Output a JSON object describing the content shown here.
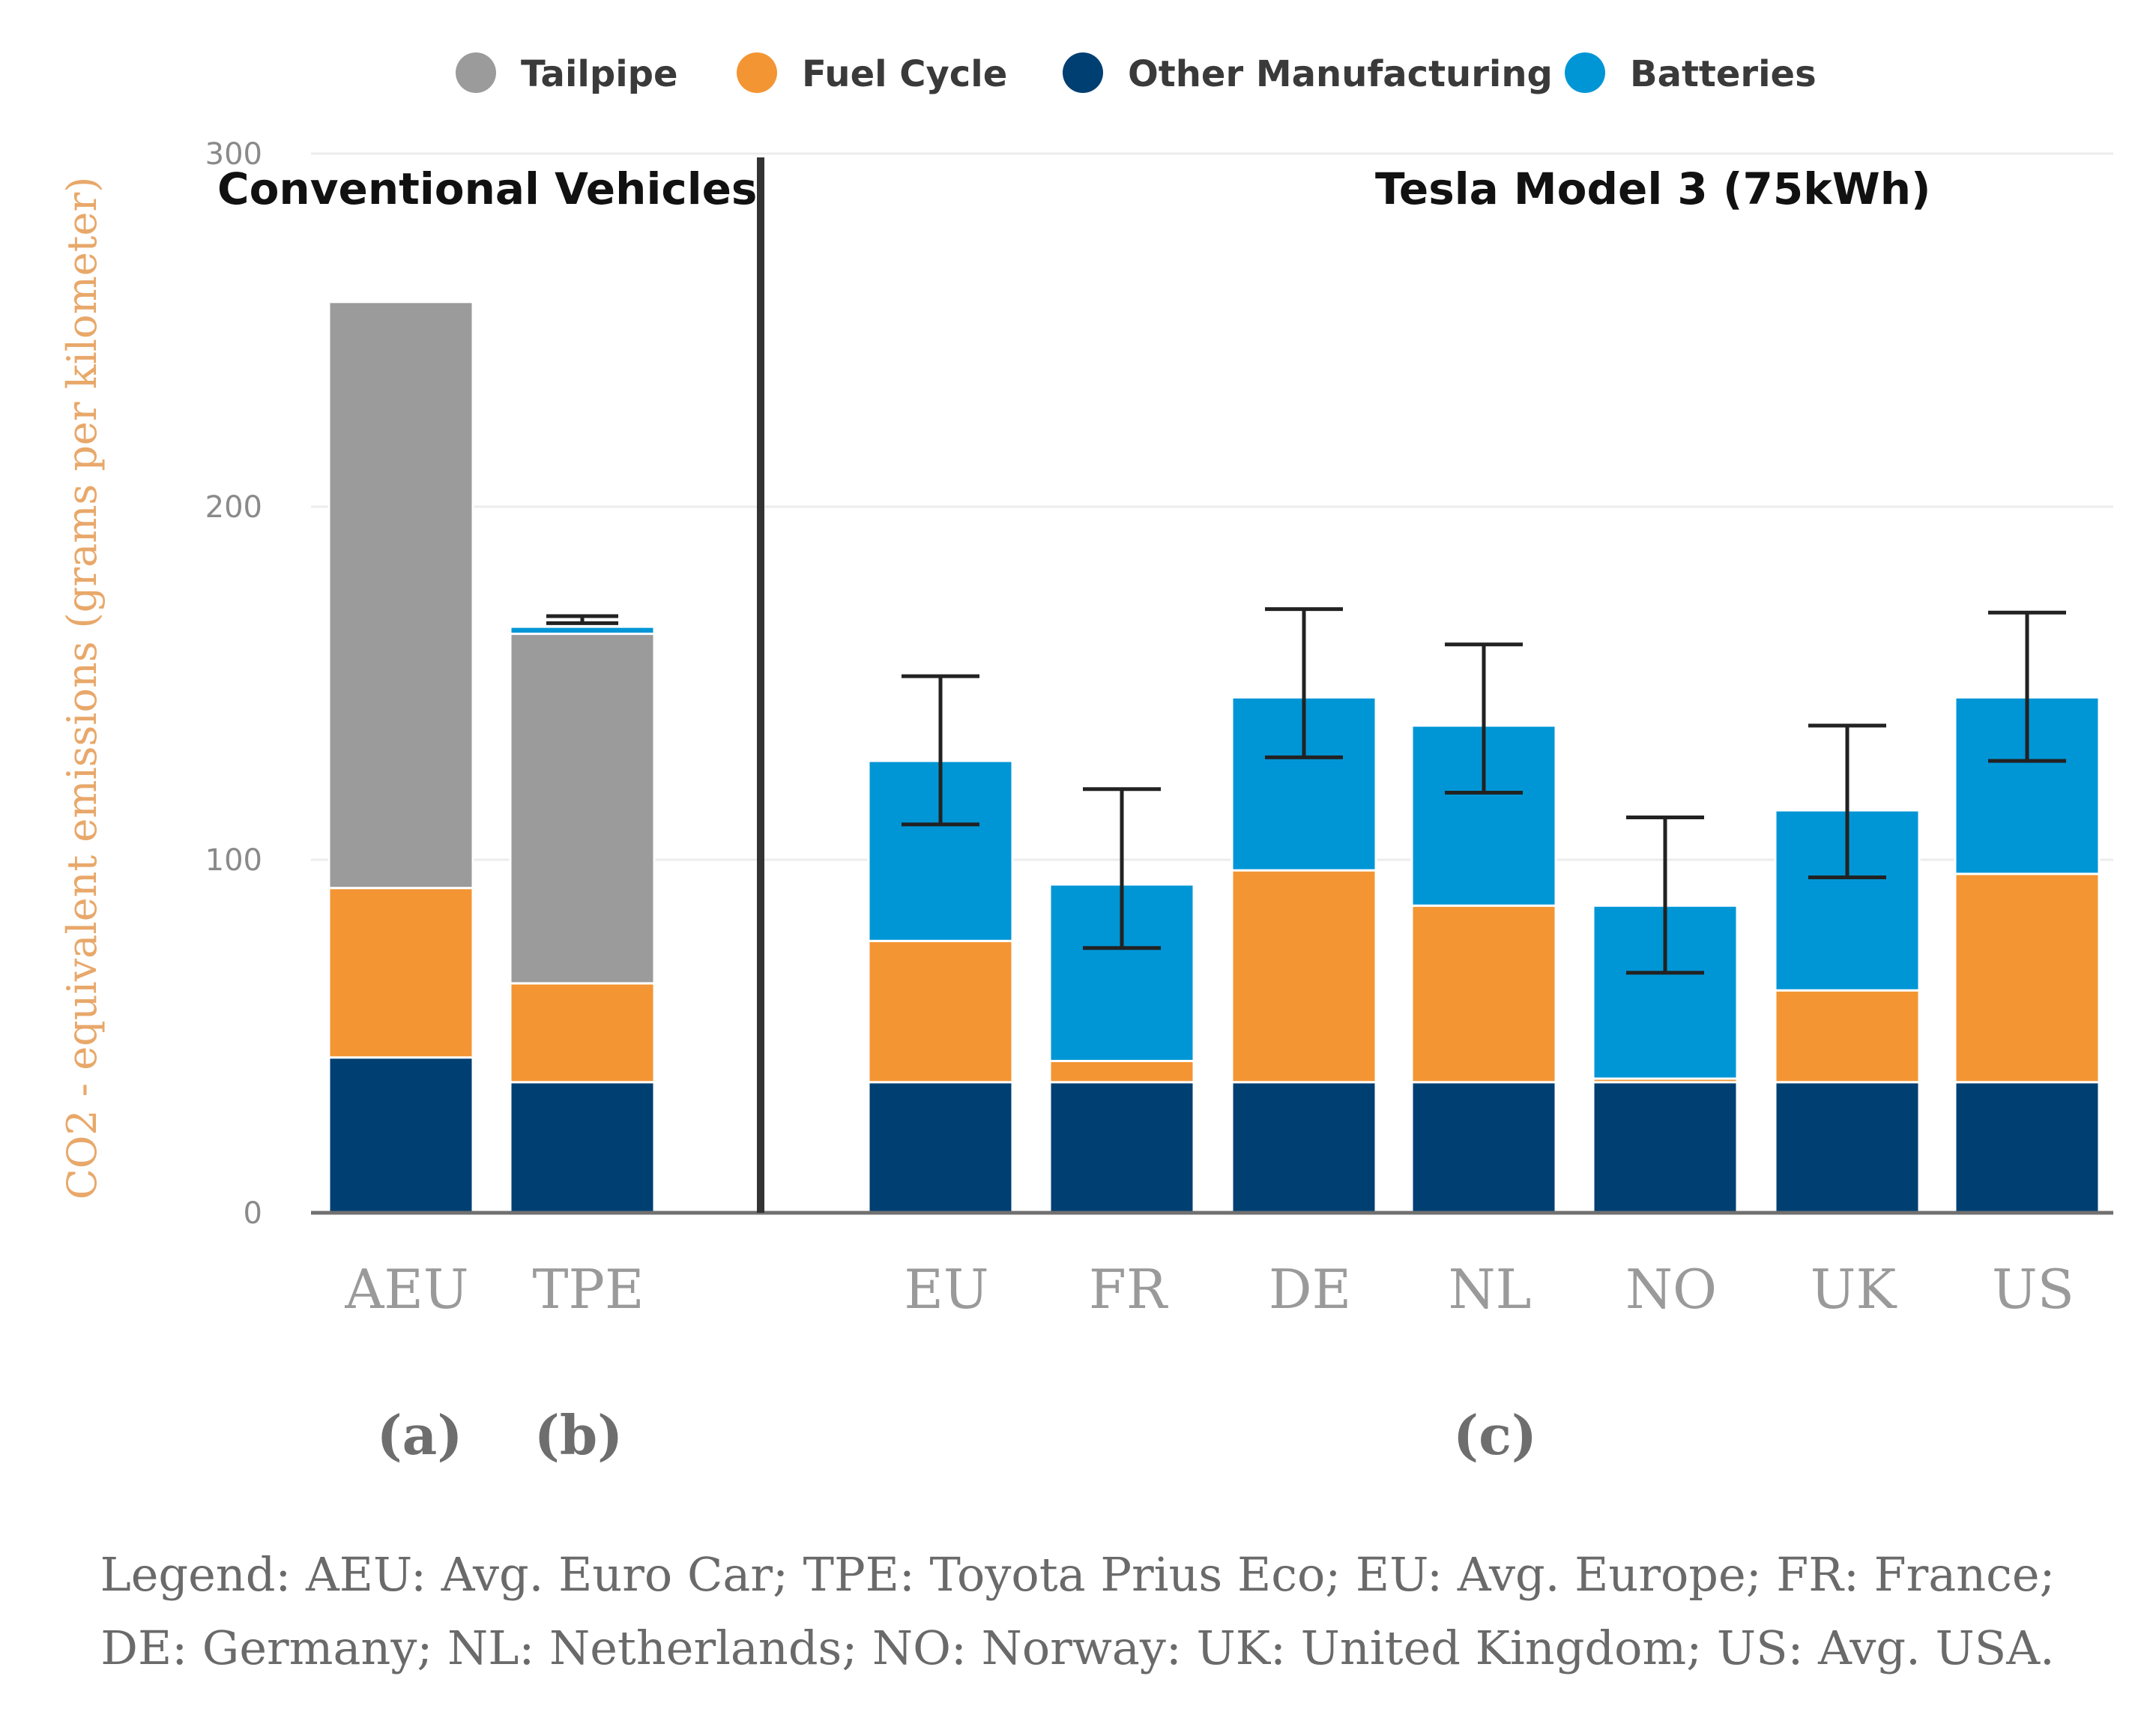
{
  "chart_data": {
    "type": "bar",
    "stacked": true,
    "ylabel": "CO2 - equivalent emissions (grams per kilometer)",
    "ylim": [
      0,
      300
    ],
    "yticks": [
      0,
      100,
      200,
      300
    ],
    "grid": true,
    "legend": {
      "placement": "top",
      "entries": [
        {
          "name": "Tailpipe",
          "color": "#9b9b9b"
        },
        {
          "name": "Fuel Cycle",
          "color": "#f39533"
        },
        {
          "name": "Other Manufacturing",
          "color": "#003f72"
        },
        {
          "name": "Batteries",
          "color": "#0096d6"
        }
      ]
    },
    "categories": [
      "AEU",
      "TPE",
      "EU",
      "FR",
      "DE",
      "NL",
      "NO",
      "UK",
      "US"
    ],
    "series": [
      {
        "name": "Other Manufacturing",
        "values": [
          44,
          37,
          37,
          37,
          37,
          37,
          37,
          37,
          37
        ]
      },
      {
        "name": "Fuel Cycle",
        "values": [
          48,
          28,
          40,
          6,
          60,
          50,
          1,
          26,
          59
        ]
      },
      {
        "name": "Tailpipe",
        "values": [
          166,
          99,
          0,
          0,
          0,
          0,
          0,
          0,
          0
        ]
      },
      {
        "name": "Batteries",
        "values": [
          0,
          2,
          51,
          50,
          49,
          51,
          49,
          51,
          50
        ]
      }
    ],
    "error_bars": [
      null,
      {
        "low": 167,
        "high": 169
      },
      {
        "low": 110,
        "high": 152
      },
      {
        "low": 75,
        "high": 120
      },
      {
        "low": 129,
        "high": 171
      },
      {
        "low": 119,
        "high": 161
      },
      {
        "low": 68,
        "high": 112
      },
      {
        "low": 95,
        "high": 138
      },
      {
        "low": 128,
        "high": 170
      }
    ],
    "groups": [
      {
        "title": "Conventional Vehicles",
        "categories": [
          "AEU",
          "TPE"
        ],
        "panel_labels": [
          "(a)",
          "(b)"
        ]
      },
      {
        "title": "Tesla Model 3 (75kWh)",
        "categories": [
          "EU",
          "FR",
          "DE",
          "NL",
          "NO",
          "UK",
          "US"
        ],
        "panel_labels": [
          "(c)"
        ]
      }
    ],
    "note_lines": [
      "Legend:  AEU: Avg. Euro Car; TPE: Toyota Prius Eco; EU: Avg. Europe; FR: France;",
      "DE: Germany; NL: Netherlands; NO: Norway: UK: United Kingdom; US: Avg. USA."
    ]
  }
}
